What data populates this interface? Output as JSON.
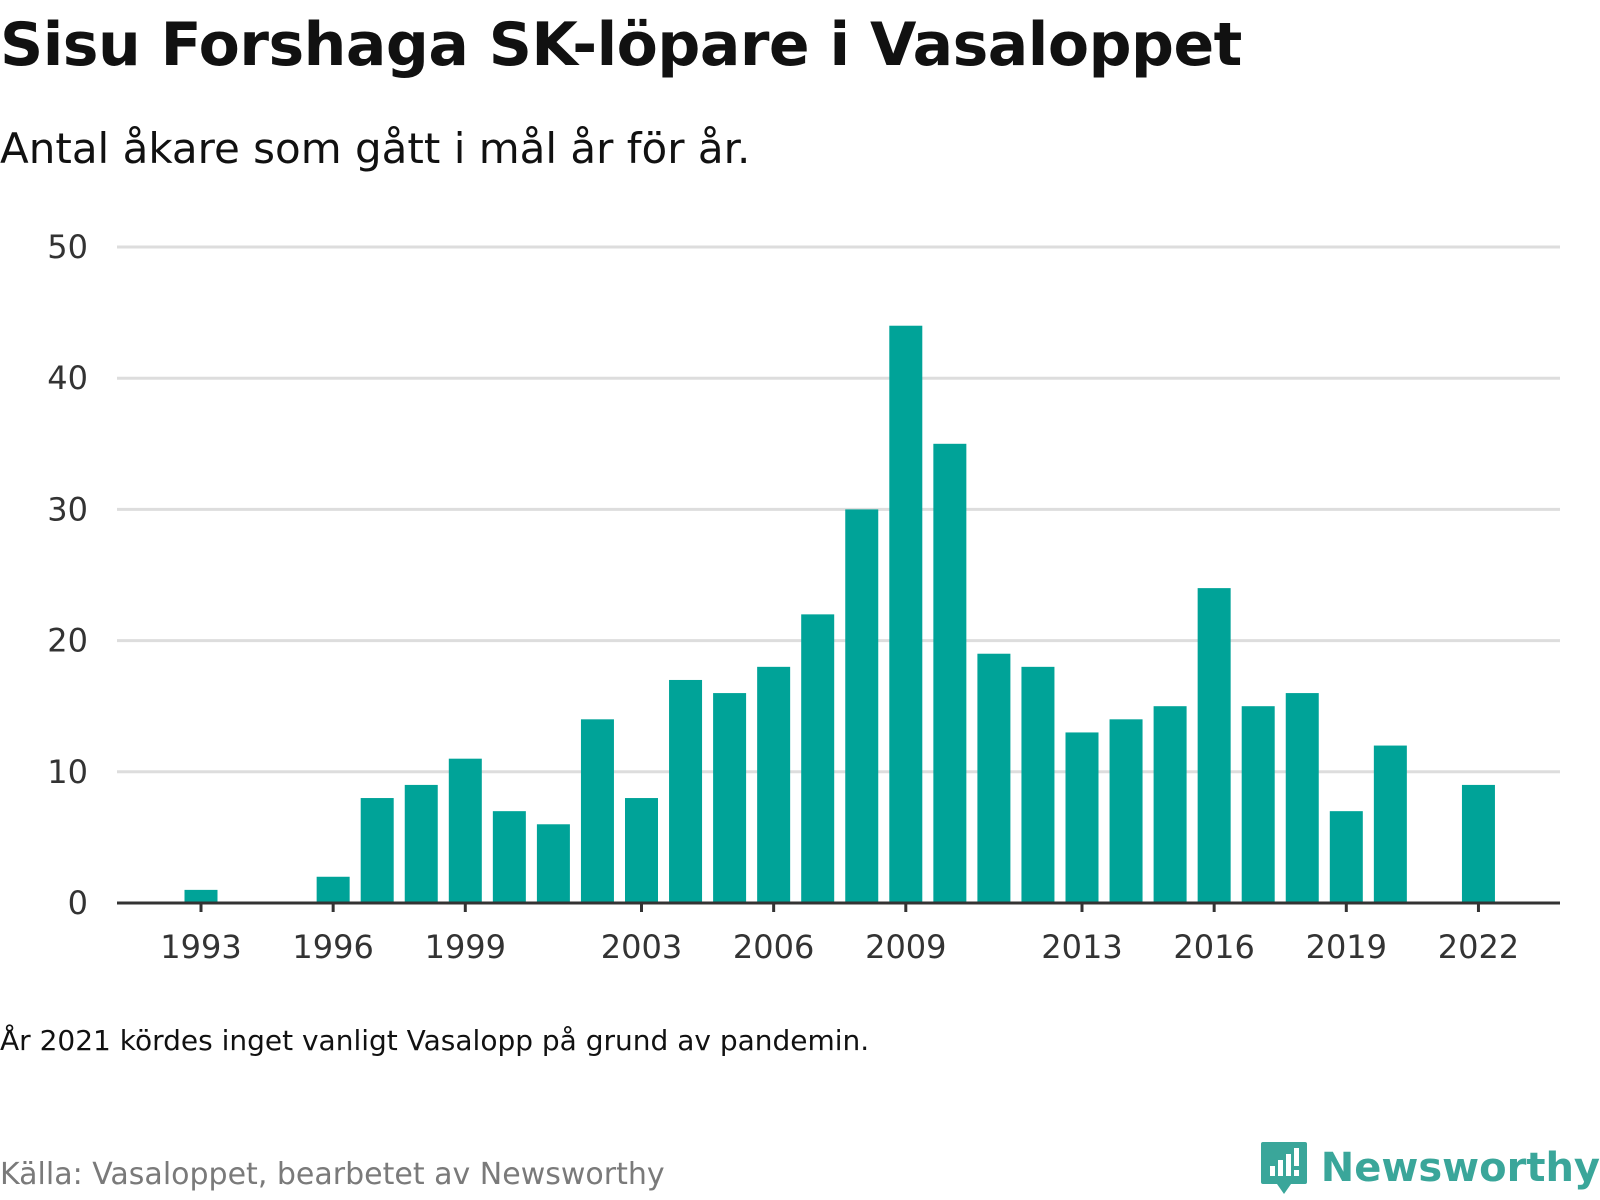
{
  "header": {
    "title": "Sisu Forshaga SK-löpare i Vasaloppet",
    "subtitle": "Antal åkare som gått i mål år för år."
  },
  "footer": {
    "note": "År 2021 kördes inget vanligt Vasalopp på grund av pandemin.",
    "source": "Källa: Vasaloppet, bearbetet av Newsworthy",
    "brand": "Newsworthy",
    "brand_icon": "newsworthy-logo-icon"
  },
  "colors": {
    "bar": "#00a398",
    "grid": "#dddddd",
    "axis": "#333333",
    "brand": "#3aa69a"
  },
  "chart_data": {
    "type": "bar",
    "categories": [
      "1993",
      "1994",
      "1995",
      "1996",
      "1997",
      "1998",
      "1999",
      "2000",
      "2001",
      "2002",
      "2003",
      "2004",
      "2005",
      "2006",
      "2007",
      "2008",
      "2009",
      "2010",
      "2011",
      "2012",
      "2013",
      "2014",
      "2015",
      "2016",
      "2017",
      "2018",
      "2019",
      "2020",
      "2021",
      "2022"
    ],
    "values": [
      1,
      0,
      0,
      2,
      8,
      9,
      11,
      7,
      6,
      14,
      8,
      17,
      16,
      18,
      22,
      30,
      44,
      35,
      19,
      18,
      13,
      14,
      15,
      24,
      15,
      16,
      7,
      12,
      0,
      9
    ],
    "x_tick_labels": [
      "1993",
      "1996",
      "1999",
      "2003",
      "2006",
      "2009",
      "2013",
      "2016",
      "2019",
      "2022"
    ],
    "y_ticks": [
      0,
      10,
      20,
      30,
      40,
      50
    ],
    "ylim": [
      0,
      50
    ],
    "grid": true,
    "legend": "none"
  }
}
